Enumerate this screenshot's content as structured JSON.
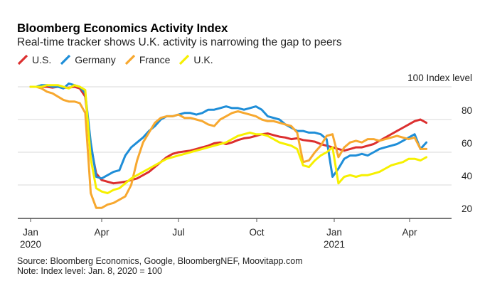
{
  "header": {
    "title": "Bloomberg Economics Activity Index",
    "subtitle": "Real-time tracker shows U.K. activity is narrowing the gap to peers"
  },
  "footer": {
    "source": "Source: Bloomberg Economics, Google, BloombergNEF, Moovitapp.com",
    "note": "Note: Index level: Jan. 8, 2020 = 100"
  },
  "chart_data": {
    "type": "line",
    "title": "Bloomberg Economics Activity Index",
    "subtitle": "Real-time tracker shows U.K. activity is narrowing the gap to peers",
    "xlabel": "",
    "ylabel": "Index level",
    "x_unit": "days since 2020-01-01",
    "xlim": [
      -16,
      505
    ],
    "ylim": [
      20,
      100
    ],
    "y_ticks": [
      {
        "value": 100,
        "label": "100 Index level"
      },
      {
        "value": 80,
        "label": "80"
      },
      {
        "value": 60,
        "label": "60"
      },
      {
        "value": 40,
        "label": "40"
      },
      {
        "value": 20,
        "label": "20"
      }
    ],
    "x_ticks": [
      {
        "day": 0,
        "label": "Jan",
        "sublabel": "2020"
      },
      {
        "day": 91,
        "label": "Apr",
        "sublabel": ""
      },
      {
        "day": 182,
        "label": "Jul",
        "sublabel": ""
      },
      {
        "day": 274,
        "label": "Oct",
        "sublabel": ""
      },
      {
        "day": 366,
        "label": "Jan",
        "sublabel": "2021"
      },
      {
        "day": 456,
        "label": "Apr",
        "sublabel": ""
      }
    ],
    "grid": true,
    "legend_position": "top-left",
    "x": [
      7,
      14,
      21,
      28,
      35,
      42,
      49,
      56,
      63,
      70,
      77,
      84,
      91,
      98,
      105,
      112,
      119,
      126,
      133,
      140,
      147,
      154,
      161,
      168,
      175,
      182,
      189,
      196,
      203,
      210,
      217,
      224,
      231,
      238,
      245,
      252,
      259,
      266,
      273,
      280,
      287,
      294,
      301,
      308,
      315,
      322,
      329,
      336,
      343,
      350,
      357,
      364,
      371,
      378,
      385,
      392,
      399,
      406,
      413,
      420,
      427,
      434,
      441,
      448,
      455,
      462,
      469,
      476
    ],
    "series": [
      {
        "name": "U.S.",
        "color": "#dc2f2f",
        "values": [
          100,
          100,
          100,
          99.5,
          100,
          99.5,
          99.5,
          100,
          99,
          94,
          64,
          47,
          43,
          42,
          41,
          41.5,
          42,
          43,
          44,
          46,
          48,
          51,
          54,
          57,
          59,
          60,
          60.5,
          61,
          62,
          63,
          64,
          65.5,
          66,
          65,
          66,
          67.5,
          68.5,
          69,
          70,
          71,
          71.5,
          70.5,
          69.5,
          69,
          68,
          68.5,
          67.5,
          67,
          66.5,
          65,
          64,
          63,
          62,
          61,
          62,
          63,
          63,
          64,
          65,
          67,
          69,
          71,
          73,
          75,
          77,
          79,
          80,
          78
        ]
      },
      {
        "name": "Germany",
        "color": "#1f8ed8",
        "values": [
          100,
          101,
          101,
          100,
          100,
          99,
          102,
          101,
          100,
          96,
          66,
          45,
          44,
          46,
          48,
          49,
          58,
          63,
          66,
          69,
          73,
          76,
          80,
          82,
          82,
          83,
          84,
          84,
          83,
          84,
          86,
          86,
          87,
          88,
          87,
          87,
          86,
          87,
          88,
          86,
          82,
          81,
          80,
          77,
          75,
          73,
          73,
          72,
          72,
          71,
          68,
          45,
          50,
          56,
          58,
          58,
          59,
          58,
          60,
          62,
          63,
          64,
          65,
          67,
          69,
          71,
          62,
          66
        ]
      },
      {
        "name": "France",
        "color": "#f7a82f",
        "values": [
          100,
          99,
          97,
          96,
          94,
          92,
          91,
          91,
          90,
          84,
          35,
          26,
          26,
          28,
          29,
          31,
          33,
          40,
          55,
          66,
          72,
          78,
          81,
          82,
          82,
          83,
          81,
          81,
          80,
          79,
          77,
          76,
          80,
          82,
          84,
          85,
          84,
          83,
          82,
          80,
          79,
          79,
          78,
          77,
          76,
          72,
          54,
          55,
          60,
          64,
          70,
          71,
          57,
          63,
          66,
          67,
          66,
          68,
          68,
          67,
          68,
          69,
          70,
          69,
          68,
          69,
          62,
          62
        ]
      },
      {
        "name": "U.K.",
        "color": "#f6f000",
        "values": [
          100,
          100,
          101,
          101,
          101,
          100,
          99,
          101,
          100,
          98,
          56,
          38,
          36,
          35,
          37,
          38,
          41,
          44,
          46,
          48,
          50,
          52,
          54,
          56,
          57,
          58,
          59,
          60,
          61,
          62,
          63,
          64,
          65,
          66,
          68,
          70,
          71,
          72,
          71,
          71,
          70,
          68,
          66,
          65,
          64,
          62,
          52,
          51,
          55,
          58,
          60,
          63,
          41,
          45,
          46,
          45,
          46,
          46,
          47,
          48,
          50,
          52,
          53,
          54,
          56,
          56,
          55,
          57
        ]
      }
    ]
  }
}
